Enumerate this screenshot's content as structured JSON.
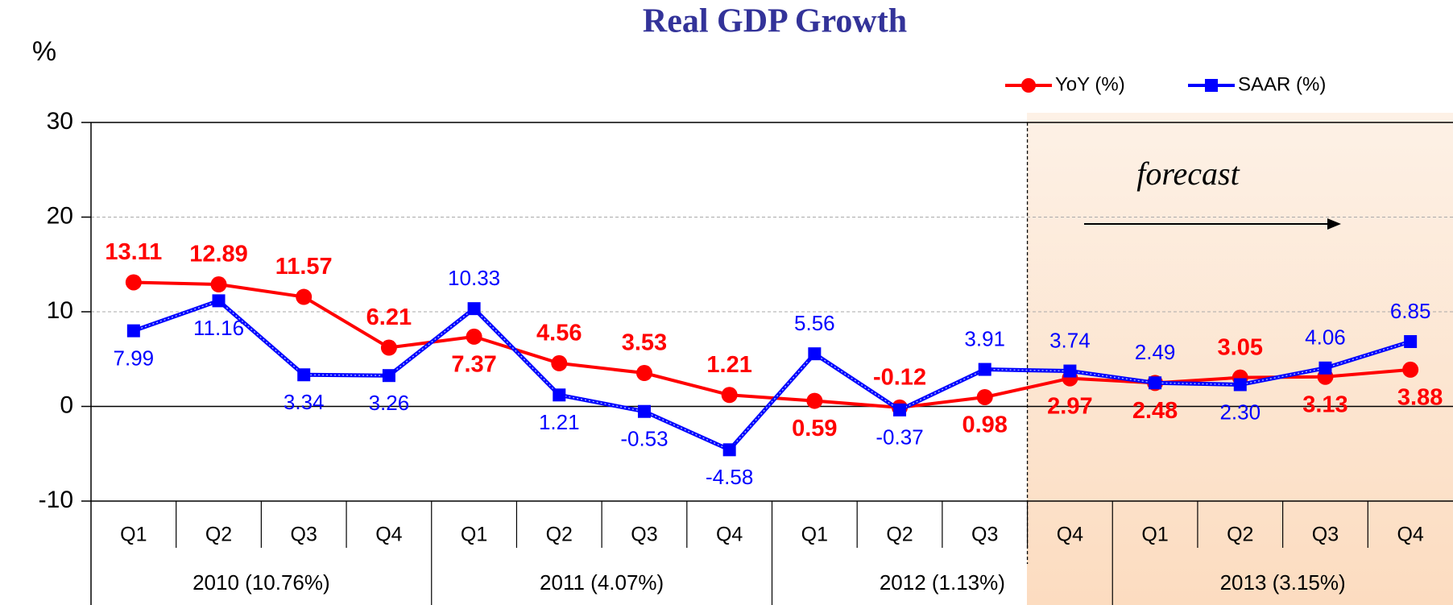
{
  "chart_data": {
    "type": "line",
    "title": "Real GDP Growth",
    "y_label": "%",
    "annotation": "forecast",
    "categories": [
      "Q1",
      "Q2",
      "Q3",
      "Q4",
      "Q1",
      "Q2",
      "Q3",
      "Q4",
      "Q1",
      "Q2",
      "Q3",
      "Q4",
      "Q1",
      "Q2",
      "Q3",
      "Q4"
    ],
    "groups": [
      "2010 (10.76%)",
      "2011 (4.07%)",
      "2012 (1.13%)",
      "2013 (3.15%)"
    ],
    "series": [
      {
        "name": "YoY (%)",
        "color": "#ff0000",
        "values": [
          13.11,
          12.89,
          11.57,
          6.21,
          7.37,
          4.56,
          3.53,
          1.21,
          0.59,
          -0.12,
          0.98,
          2.97,
          2.48,
          3.05,
          3.13,
          3.88
        ],
        "value_labels": [
          "13.11",
          "12.89",
          "11.57",
          "6.21",
          "7.37",
          "4.56",
          "3.53",
          "1.21",
          "0.59",
          "-0.12",
          "0.98",
          "2.97",
          "2.48",
          "3.05",
          "3.13",
          "3.88"
        ]
      },
      {
        "name": "SAAR (%)",
        "color": "#0000ff",
        "values": [
          7.99,
          11.16,
          3.34,
          3.26,
          10.33,
          1.21,
          -0.53,
          -4.58,
          5.56,
          -0.37,
          3.91,
          3.74,
          2.49,
          2.3,
          4.06,
          6.85
        ],
        "value_labels": [
          "7.99",
          "11.16",
          "3.34",
          "3.26",
          "10.33",
          "1.21",
          "-0.53",
          "-4.58",
          "5.56",
          "-0.37",
          "3.91",
          "3.74",
          "2.49",
          "2.30",
          "4.06",
          "6.85"
        ]
      }
    ],
    "ylim": [
      -10,
      30
    ],
    "yticks": [
      -10,
      0,
      10,
      20,
      30
    ],
    "grid": true,
    "legend": "top-right"
  }
}
